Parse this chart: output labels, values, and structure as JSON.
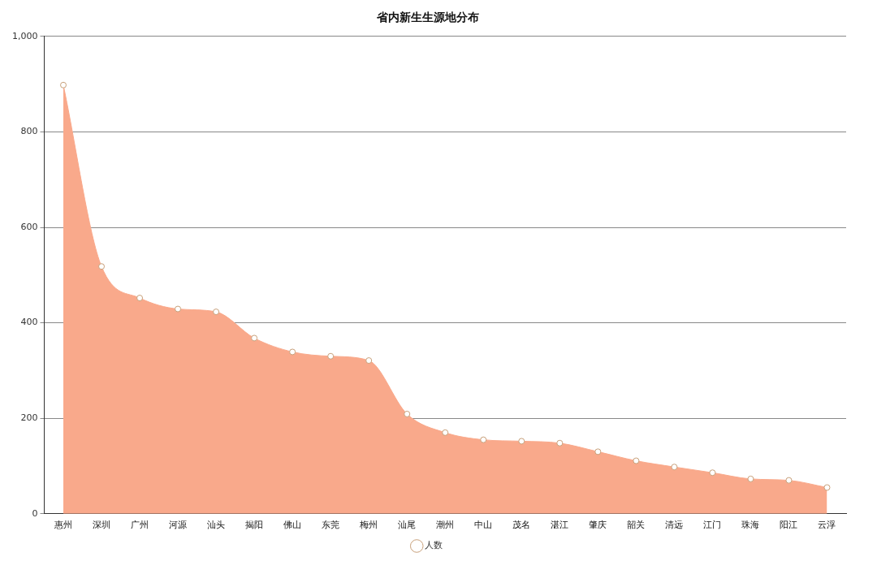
{
  "chart_data": {
    "type": "area",
    "title": "省内新生生源地分布",
    "categories": [
      "惠州",
      "深圳",
      "广州",
      "河源",
      "汕头",
      "揭阳",
      "佛山",
      "东莞",
      "梅州",
      "汕尾",
      "潮州",
      "中山",
      "茂名",
      "湛江",
      "肇庆",
      "韶关",
      "清远",
      "江门",
      "珠海",
      "阳江",
      "云浮"
    ],
    "series": [
      {
        "name": "人数",
        "color": "#f9a98b",
        "values": [
          898,
          518,
          452,
          429,
          423,
          368,
          339,
          330,
          321,
          209,
          170,
          155,
          152,
          148,
          130,
          111,
          98,
          86,
          73,
          70,
          55
        ]
      }
    ],
    "ylim": [
      0,
      1000
    ],
    "yticks": [
      0,
      200,
      400,
      600,
      800,
      {
        "value": 1000,
        "label": "1,000"
      }
    ],
    "grid": "y",
    "legend": "bottom",
    "marker": "circle"
  }
}
